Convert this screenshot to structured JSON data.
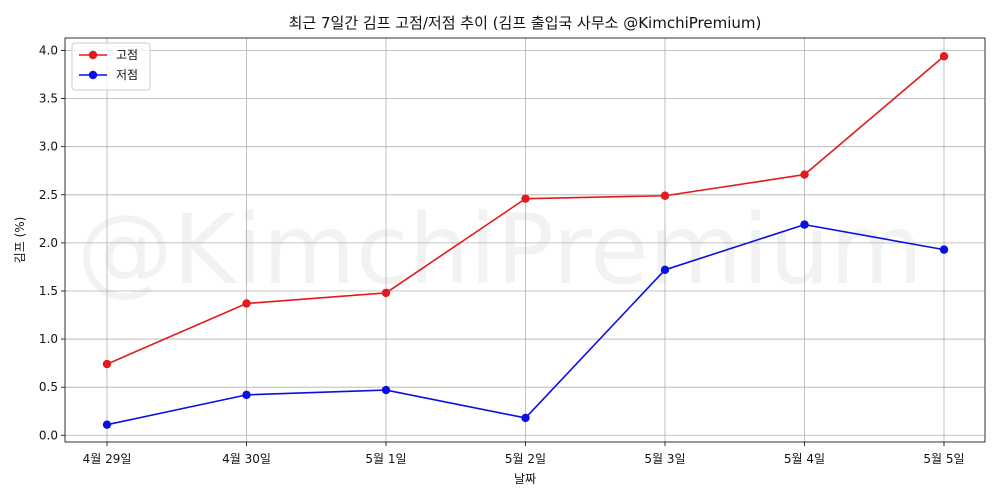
{
  "chart_data": {
    "type": "line",
    "title": "최근 7일간 김프 고점/저점 추이 (김프 출입국 사무소 @KimchiPremium)",
    "xlabel": "날짜",
    "ylabel": "김프 (%)",
    "watermark": "@KimchiPremium",
    "categories": [
      "4월 29일",
      "4월 30일",
      "5월 1일",
      "5월 2일",
      "5월 3일",
      "5월 4일",
      "5월 5일"
    ],
    "series": [
      {
        "name": "고점",
        "color": "#e41a1c",
        "values": [
          0.74,
          1.37,
          1.48,
          2.46,
          2.49,
          2.71,
          3.94
        ]
      },
      {
        "name": "저점",
        "color": "#0a10e0",
        "values": [
          0.11,
          0.42,
          0.47,
          0.18,
          1.72,
          2.19,
          1.93
        ]
      }
    ],
    "ylim": [
      -0.07,
      4.13
    ],
    "yticks": [
      0.0,
      0.5,
      1.0,
      1.5,
      2.0,
      2.5,
      3.0,
      3.5,
      4.0
    ],
    "grid": true,
    "legend_position": "top-left"
  }
}
